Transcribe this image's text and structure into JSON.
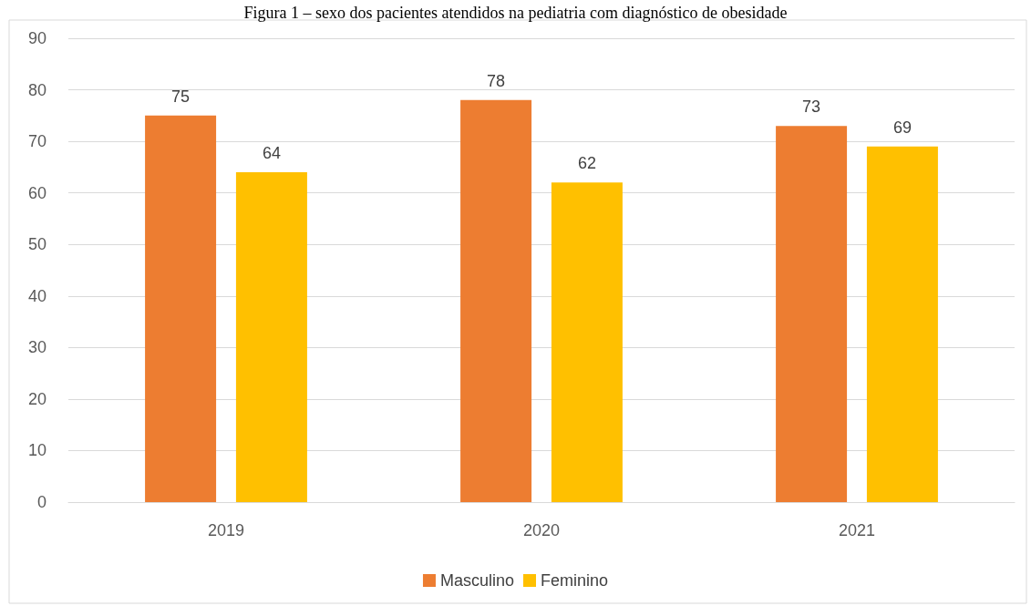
{
  "chart_data": {
    "type": "bar",
    "title": "Figura 1 – sexo dos pacientes atendidos na pediatria com diagnóstico de obesidade",
    "categories": [
      "2019",
      "2020",
      "2021"
    ],
    "series": [
      {
        "name": "Masculino",
        "color": "#ed7d31",
        "values": [
          75,
          78,
          73
        ]
      },
      {
        "name": "Feminino",
        "color": "#ffc000",
        "values": [
          64,
          62,
          69
        ]
      }
    ],
    "ylim": [
      0,
      90
    ],
    "yticks": [
      0,
      10,
      20,
      30,
      40,
      50,
      60,
      70,
      80,
      90
    ],
    "grid": "y",
    "legend": "bottom",
    "data_labels": true
  }
}
